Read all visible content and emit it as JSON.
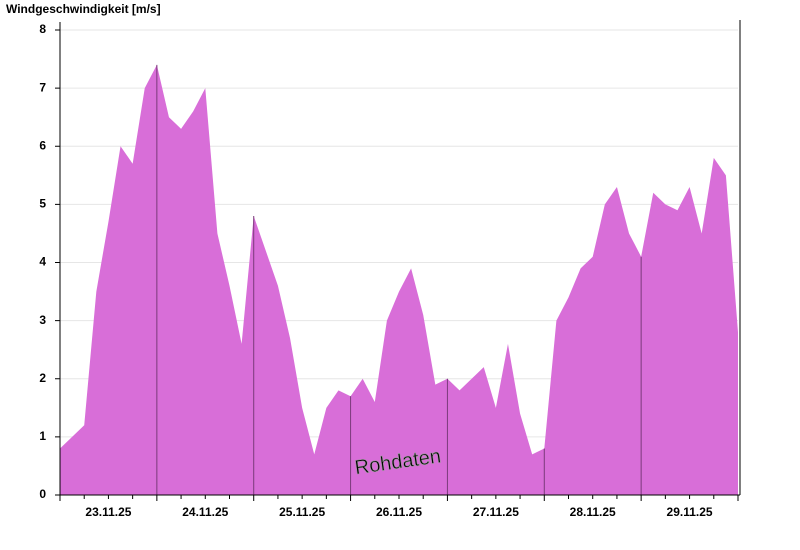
{
  "chart_data": {
    "type": "area",
    "title": "Windgeschwindigkeit [m/s]",
    "annotation": "Rohdaten",
    "categories": [
      null,
      null,
      null,
      null,
      "23.11.25",
      null,
      null,
      null,
      null,
      null,
      null,
      null,
      "24.11.25",
      null,
      null,
      null,
      null,
      null,
      null,
      null,
      "25.11.25",
      null,
      null,
      null,
      null,
      null,
      null,
      null,
      "26.11.25",
      null,
      null,
      null,
      null,
      null,
      null,
      null,
      "27.11.25",
      null,
      null,
      null,
      null,
      null,
      null,
      null,
      "28.11.25",
      null,
      null,
      null,
      null,
      null,
      null,
      null,
      "29.11.25",
      null,
      null,
      null,
      null
    ],
    "values": [
      0.8,
      1.0,
      1.2,
      3.5,
      4.7,
      6.0,
      5.7,
      7.0,
      7.4,
      6.5,
      6.3,
      6.6,
      7.0,
      4.5,
      3.6,
      2.6,
      4.8,
      4.2,
      3.6,
      2.7,
      1.5,
      0.7,
      1.5,
      1.8,
      1.7,
      2.0,
      1.6,
      3.0,
      3.5,
      3.9,
      3.1,
      1.9,
      2.0,
      1.8,
      2.0,
      2.2,
      1.5,
      2.6,
      1.4,
      0.7,
      0.8,
      3.0,
      3.4,
      3.9,
      4.1,
      5.0,
      5.3,
      4.5,
      4.1,
      5.2,
      5.0,
      4.9,
      5.3,
      4.5,
      5.8,
      5.5,
      2.8
    ],
    "color": "#d86ed8",
    "ylim": [
      0,
      8
    ],
    "yticks": [
      0,
      1,
      2,
      3,
      4,
      5,
      6,
      7,
      8
    ],
    "grid": true
  }
}
